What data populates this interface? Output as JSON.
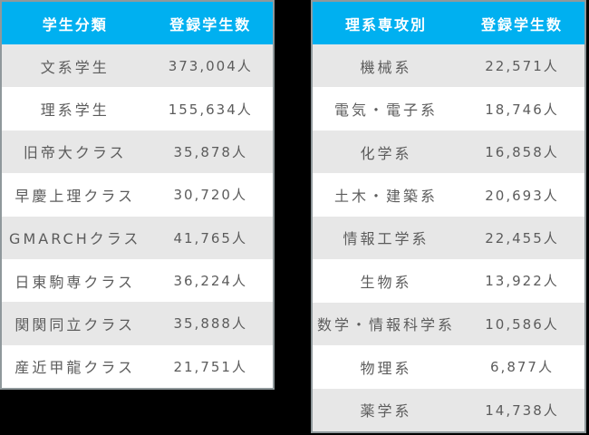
{
  "canvas": {
    "background": "#000000"
  },
  "style": {
    "header_bg": "#00b0f0",
    "header_text_color": "#ffffff",
    "row_alt_bg": "#e7e7e7",
    "row_bg": "#ffffff",
    "body_text_color": "#5c5c5c",
    "table_outline_color": "#8f989b"
  },
  "tables": [
    {
      "name": "student-category",
      "headers": [
        "学生分類",
        "登録学生数"
      ],
      "rows": [
        {
          "label": "文系学生",
          "value": "373,004人"
        },
        {
          "label": "理系学生",
          "value": "155,634人"
        },
        {
          "label": "旧帝大クラス",
          "value": "35,878人"
        },
        {
          "label": "早慶上理クラス",
          "value": "30,720人"
        },
        {
          "label": "GMARCHクラス",
          "value": "41,765人"
        },
        {
          "label": "日東駒専クラス",
          "value": "36,224人"
        },
        {
          "label": "関関同立クラス",
          "value": "35,888人"
        },
        {
          "label": "産近甲龍クラス",
          "value": "21,751人"
        }
      ]
    },
    {
      "name": "science-major",
      "headers": [
        "理系専攻別",
        "登録学生数"
      ],
      "rows": [
        {
          "label": "機械系",
          "value": "22,571人"
        },
        {
          "label": "電気・電子系",
          "value": "18,746人"
        },
        {
          "label": "化学系",
          "value": "16,858人"
        },
        {
          "label": "土木・建築系",
          "value": "20,693人"
        },
        {
          "label": "情報工学系",
          "value": "22,455人"
        },
        {
          "label": "生物系",
          "value": "13,922人"
        },
        {
          "label": "数学・情報科学系",
          "value": "10,586人"
        },
        {
          "label": "物理系",
          "value": "6,877人"
        },
        {
          "label": "薬学系",
          "value": "14,738人"
        }
      ]
    }
  ],
  "chart_data": [
    {
      "type": "table",
      "columns": [
        "学生分類",
        "登録学生数"
      ],
      "categories": [
        "文系学生",
        "理系学生",
        "旧帝大クラス",
        "早慶上理クラス",
        "GMARCHクラス",
        "日東駒専クラス",
        "関関同立クラス",
        "産近甲龍クラス"
      ],
      "values": [
        373004,
        155634,
        35878,
        30720,
        41765,
        36224,
        35888,
        21751
      ],
      "unit": "人",
      "layout": "striped table, cyan header, left panel"
    },
    {
      "type": "table",
      "columns": [
        "理系専攻別",
        "登録学生数"
      ],
      "categories": [
        "機械系",
        "電気・電子系",
        "化学系",
        "土木・建築系",
        "情報工学系",
        "生物系",
        "数学・情報科学系",
        "物理系",
        "薬学系"
      ],
      "values": [
        22571,
        18746,
        16858,
        20693,
        22455,
        13922,
        10586,
        6877,
        14738
      ],
      "unit": "人",
      "layout": "striped table, cyan header, right panel"
    }
  ]
}
